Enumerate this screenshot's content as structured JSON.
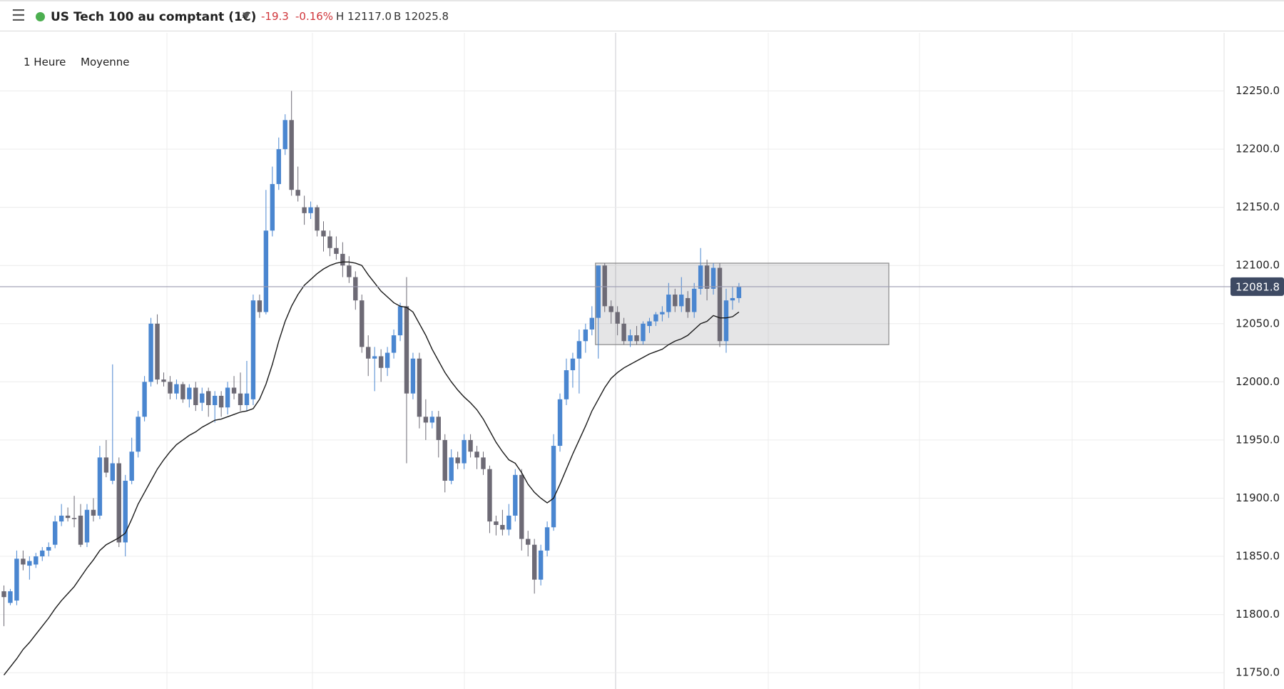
{
  "header": {
    "title": "US Tech 100 au comptant (1€)",
    "change": "-19.3",
    "change_pct": "-0.16%",
    "high": "H 12117.0",
    "bid": "B 12025.8"
  },
  "toolbar": {
    "interval": "1 Heure",
    "indicator": "Moyenne"
  },
  "chart_data": {
    "type": "candlestick",
    "ylim": [
      11736,
      12300
    ],
    "yticks": [
      {
        "value": 11750,
        "label": "11750.0"
      },
      {
        "value": 11800,
        "label": "11800.0"
      },
      {
        "value": 11850,
        "label": "11850.0"
      },
      {
        "value": 11900,
        "label": "11900.0"
      },
      {
        "value": 11950,
        "label": "11950.0"
      },
      {
        "value": 12000,
        "label": "12000.0"
      },
      {
        "value": 12050,
        "label": "12050.0"
      },
      {
        "value": 12100,
        "label": "12100.0"
      },
      {
        "value": 12150,
        "label": "12150.0"
      },
      {
        "value": 12200,
        "label": "12200.0"
      },
      {
        "value": 12250,
        "label": "12250.0"
      }
    ],
    "grid": true,
    "up_color": "#4a86d0",
    "down_color": "#6d6a75",
    "last_price": 12081.8,
    "zone": {
      "top": 12102,
      "bottom": 12032
    },
    "open": [
      11820,
      11810,
      11812,
      11848,
      11842,
      11843,
      11850,
      11855,
      11860,
      11880,
      11885,
      11883,
      11885,
      11862,
      11890,
      11885,
      11935,
      11915,
      11930,
      11862,
      11915,
      11940,
      11970,
      12000,
      12050,
      12002,
      12000,
      11990,
      11998,
      11985,
      11995,
      11982,
      11992,
      11980,
      11988,
      11978,
      11995,
      11990,
      11980,
      11985,
      12070,
      12060,
      12130,
      12170,
      12200,
      12225,
      12165,
      12150,
      12145,
      12150,
      12130,
      12125,
      12115,
      12110,
      12100,
      12090,
      12070,
      12030,
      12020,
      12022,
      12012,
      12025,
      12040,
      12065,
      11990,
      12020,
      11970,
      11965,
      11970,
      11950,
      11915,
      11935,
      11930,
      11950,
      11940,
      11935,
      11925,
      11880,
      11877,
      11873,
      11885,
      11920,
      11865,
      11860,
      11830,
      11855,
      11875,
      11945,
      11985,
      12010,
      12020,
      12035,
      12045,
      12055,
      12100,
      12065,
      12060,
      12050,
      12035,
      12040,
      12035,
      12048,
      12052,
      12058,
      12060,
      12075,
      12065,
      12072,
      12060,
      12080,
      12100,
      12080,
      12098,
      12035,
      12070,
      12072
    ],
    "high": [
      11825,
      11822,
      11855,
      11855,
      11850,
      11853,
      11858,
      11862,
      11885,
      11895,
      11892,
      11902,
      11895,
      11895,
      11900,
      11945,
      11950,
      12015,
      11935,
      11920,
      11952,
      11975,
      12005,
      12055,
      12058,
      12008,
      12005,
      12002,
      12000,
      11998,
      12000,
      11995,
      11995,
      11992,
      11992,
      12000,
      12005,
      12008,
      12018,
      12075,
      12075,
      12165,
      12185,
      12210,
      12230,
      12250,
      12185,
      12160,
      12155,
      12152,
      12138,
      12130,
      12125,
      12120,
      12108,
      12095,
      12075,
      12040,
      12030,
      12028,
      12030,
      12045,
      12068,
      12090,
      12025,
      12025,
      11985,
      11975,
      11975,
      11955,
      11942,
      11940,
      11955,
      11955,
      11945,
      11940,
      11928,
      11885,
      11890,
      11895,
      11925,
      11925,
      11872,
      11865,
      11860,
      11880,
      11955,
      11990,
      12020,
      12025,
      12045,
      12050,
      12065,
      12100,
      12102,
      12070,
      12065,
      12055,
      12045,
      12048,
      12052,
      12055,
      12060,
      12065,
      12085,
      12080,
      12090,
      12078,
      12085,
      12115,
      12105,
      12102,
      12102,
      12080,
      12082,
      12085
    ],
    "low": [
      11790,
      11808,
      11808,
      11838,
      11830,
      11840,
      11846,
      11850,
      11857,
      11876,
      11880,
      11875,
      11858,
      11858,
      11880,
      11882,
      11918,
      11912,
      11858,
      11850,
      11912,
      11935,
      11966,
      11996,
      11998,
      11996,
      11985,
      11985,
      11982,
      11978,
      11975,
      11975,
      11970,
      11965,
      11970,
      11972,
      11985,
      11975,
      11975,
      11980,
      12055,
      12058,
      12125,
      12165,
      12195,
      12160,
      12155,
      12135,
      12140,
      12125,
      12112,
      12108,
      12105,
      12090,
      12085,
      12062,
      12025,
      12005,
      11992,
      12000,
      12005,
      12020,
      12035,
      11930,
      11985,
      11960,
      11950,
      11960,
      11935,
      11905,
      11912,
      11925,
      11925,
      11935,
      11925,
      11920,
      11870,
      11868,
      11868,
      11868,
      11880,
      11855,
      11850,
      11818,
      11825,
      11850,
      11872,
      11940,
      11980,
      11995,
      11990,
      12025,
      12040,
      12020,
      12060,
      12050,
      12040,
      12032,
      12030,
      12032,
      12032,
      12042,
      12048,
      12052,
      12055,
      12060,
      12060,
      12055,
      12055,
      12075,
      12070,
      12075,
      12030,
      12025,
      12062,
      12068
    ],
    "close": [
      11815,
      11820,
      11848,
      11843,
      11846,
      11850,
      11855,
      11858,
      11880,
      11885,
      11883,
      11882,
      11860,
      11890,
      11885,
      11935,
      11922,
      11930,
      11862,
      11915,
      11940,
      11970,
      12000,
      12050,
      12002,
      12000,
      11990,
      11998,
      11985,
      11995,
      11980,
      11990,
      11980,
      11988,
      11978,
      11995,
      11990,
      11980,
      11990,
      12070,
      12060,
      12130,
      12170,
      12200,
      12225,
      12165,
      12160,
      12145,
      12150,
      12130,
      12125,
      12115,
      12110,
      12100,
      12090,
      12070,
      12030,
      12020,
      12022,
      12012,
      12025,
      12040,
      12065,
      11990,
      12020,
      11970,
      11965,
      11970,
      11950,
      11915,
      11935,
      11930,
      11950,
      11940,
      11935,
      11925,
      11880,
      11877,
      11873,
      11885,
      11920,
      11865,
      11860,
      11830,
      11855,
      11875,
      11945,
      11985,
      12010,
      12020,
      12035,
      12045,
      12055,
      12100,
      12065,
      12060,
      12050,
      12035,
      12040,
      12035,
      12050,
      12052,
      12058,
      12060,
      12075,
      12065,
      12075,
      12060,
      12080,
      12100,
      12080,
      12098,
      12035,
      12070,
      12072,
      12081.8
    ],
    "ma": {
      "color": "#1a1a1a",
      "values": [
        11748,
        11755,
        11762,
        11770,
        11776,
        11783,
        11790,
        11797,
        11805,
        11812,
        11818,
        11824,
        11832,
        11840,
        11847,
        11855,
        11860,
        11863,
        11866,
        11870,
        11882,
        11895,
        11905,
        11915,
        11925,
        11933,
        11940,
        11946,
        11950,
        11954,
        11957,
        11961,
        11964,
        11967,
        11968,
        11970,
        11972,
        11974,
        11975,
        11977,
        11985,
        11998,
        12015,
        12035,
        12052,
        12065,
        12075,
        12083,
        12088,
        12093,
        12097,
        12100,
        12102,
        12103,
        12103,
        12102,
        12100,
        12092,
        12085,
        12078,
        12073,
        12068,
        12065,
        12064,
        12060,
        12050,
        12040,
        12028,
        12018,
        12008,
        12000,
        11993,
        11987,
        11982,
        11976,
        11968,
        11958,
        11948,
        11940,
        11933,
        11930,
        11922,
        11912,
        11905,
        11900,
        11896,
        11900,
        11912,
        11925,
        11938,
        11950,
        11962,
        11975,
        11985,
        11995,
        12003,
        12008,
        12012,
        12015,
        12018,
        12021,
        12024,
        12026,
        12028,
        12032,
        12035,
        12037,
        12040,
        12045,
        12050,
        12052,
        12057,
        12055,
        12055,
        12056,
        12060
      ]
    }
  }
}
